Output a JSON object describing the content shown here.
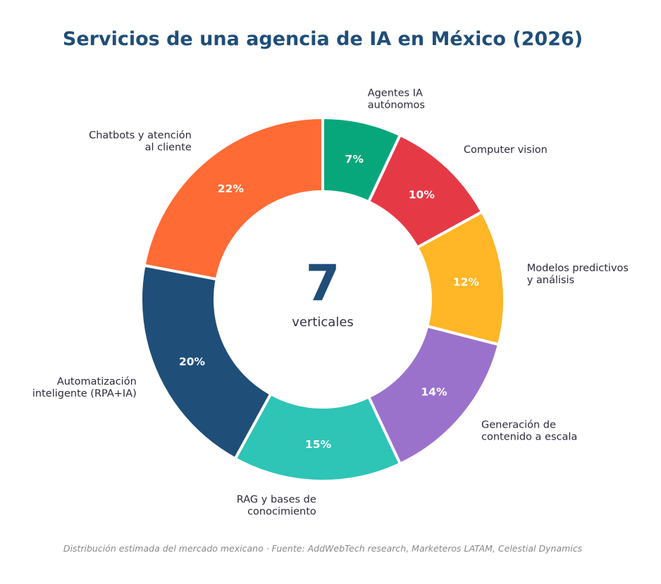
{
  "chart_data": {
    "type": "pie",
    "title": "Servicios de una agencia de IA en México (2026)",
    "center_value": "7",
    "center_caption": "verticales",
    "footnote": "Distribución estimada del mercado mexicano · Fuente: AddWebTech research, Marketeros LATAM, Celestial Dynamics",
    "slices": [
      {
        "label_lines": [
          "Agentes IA",
          "autónomos"
        ],
        "value": 7,
        "pct_label": "7%",
        "color": "#07a77b"
      },
      {
        "label_lines": [
          "Computer vision"
        ],
        "value": 10,
        "pct_label": "10%",
        "color": "#e63946"
      },
      {
        "label_lines": [
          "Modelos predictivos",
          "y análisis"
        ],
        "value": 12,
        "pct_label": "12%",
        "color": "#ffb627"
      },
      {
        "label_lines": [
          "Generación de",
          "contenido a escala"
        ],
        "value": 14,
        "pct_label": "14%",
        "color": "#9b72cb"
      },
      {
        "label_lines": [
          "RAG y bases de",
          "conocimiento"
        ],
        "value": 15,
        "pct_label": "15%",
        "color": "#2ec4b6"
      },
      {
        "label_lines": [
          "Automatización",
          "inteligente (RPA+IA)"
        ],
        "value": 20,
        "pct_label": "20%",
        "color": "#1f4e79"
      },
      {
        "label_lines": [
          "Chatbots y atención",
          "al cliente"
        ],
        "value": 22,
        "pct_label": "22%",
        "color": "#ff6b35"
      }
    ]
  }
}
